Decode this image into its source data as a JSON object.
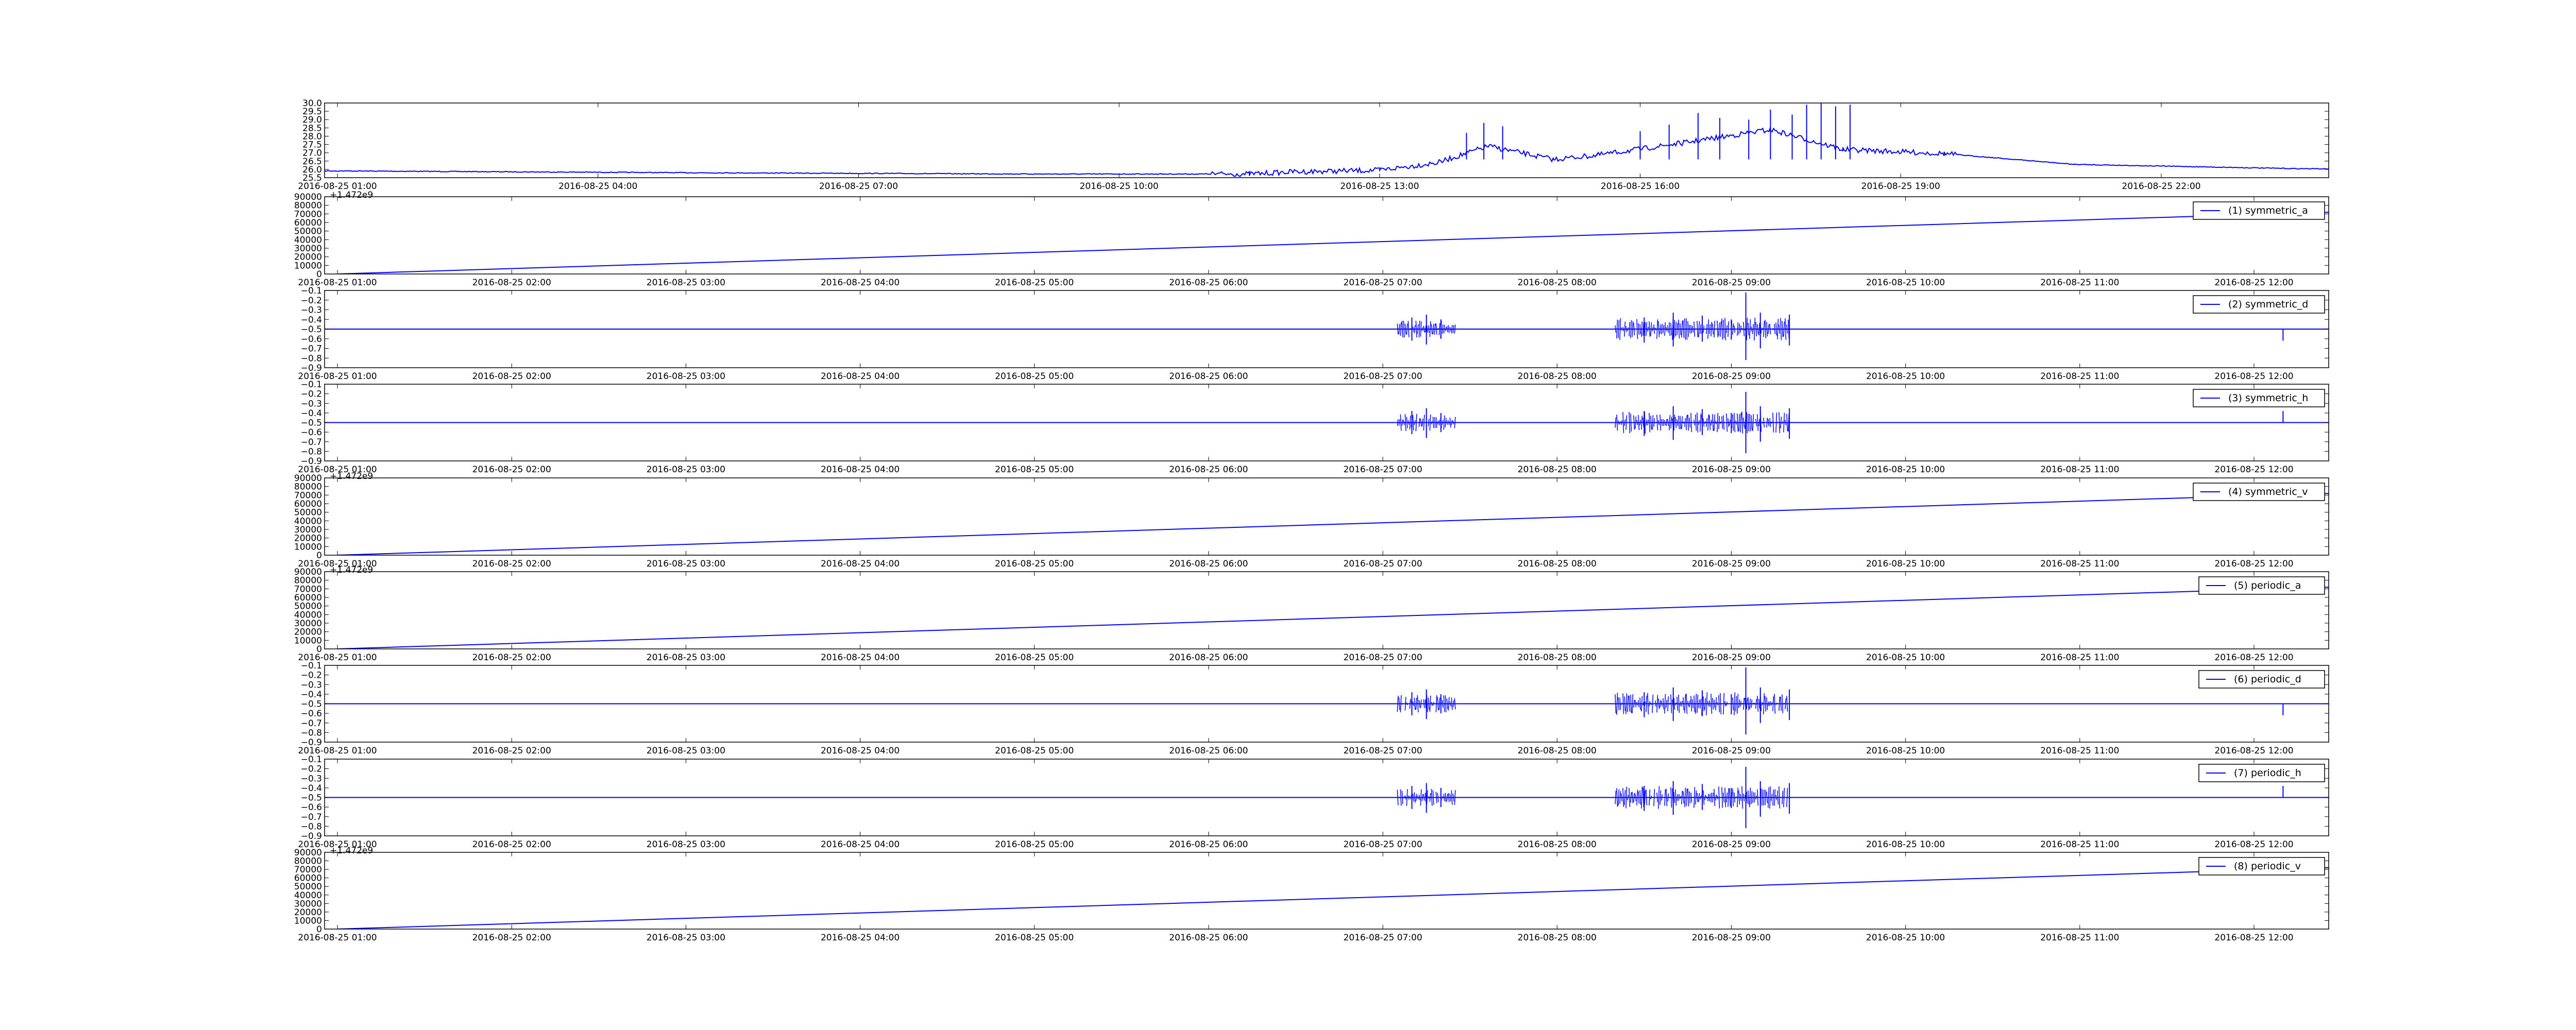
{
  "figure": {
    "background": "#ffffff",
    "line_color": "#0000ff",
    "axes_color": "#000000"
  },
  "chart_data": [
    {
      "type": "line",
      "title": "",
      "xlabel": "",
      "ylabel": "",
      "ylim": [
        25.5,
        30.0
      ],
      "yticks": [
        "30.0",
        "29.5",
        "29.0",
        "28.5",
        "28.0",
        "27.5",
        "27.0",
        "26.5",
        "26.0",
        "25.5"
      ],
      "xticks": [
        "2016-08-25 01:00",
        "2016-08-25 04:00",
        "2016-08-25 07:00",
        "2016-08-25 10:00",
        "2016-08-25 13:00",
        "2016-08-25 16:00",
        "2016-08-25 19:00",
        "2016-08-25 22:00"
      ],
      "grid": false,
      "legend": "none",
      "series": [
        {
          "color": "#0000ff",
          "points": [
            [
              "2016-08-25 00:30",
              25.92
            ],
            [
              "2016-08-25 05:00",
              25.8
            ],
            [
              "2016-08-25 09:00",
              25.72
            ],
            [
              "2016-08-25 11:30",
              25.72
            ],
            [
              "2016-08-25 12:00",
              25.85
            ],
            [
              "2016-08-25 13:00",
              25.95
            ],
            [
              "2016-08-25 13:40",
              26.4
            ],
            [
              "2016-08-25 14:15",
              27.4
            ],
            [
              "2016-08-25 15:00",
              26.6
            ],
            [
              "2016-08-25 15:30",
              26.85
            ],
            [
              "2016-08-25 16:30",
              27.6
            ],
            [
              "2016-08-25 17:30",
              28.4
            ],
            [
              "2016-08-25 18:20",
              27.2
            ],
            [
              "2016-08-25 19:30",
              26.95
            ],
            [
              "2016-08-25 21:00",
              26.3
            ],
            [
              "2016-08-25 23:30",
              26.05
            ],
            [
              "2016-08-26 01:00",
              25.98
            ]
          ],
          "spikes": [
            [
              "2016-08-25 14:00",
              28.2
            ],
            [
              "2016-08-25 14:12",
              28.8
            ],
            [
              "2016-08-25 14:25",
              28.6
            ],
            [
              "2016-08-25 16:00",
              28.3
            ],
            [
              "2016-08-25 16:20",
              28.7
            ],
            [
              "2016-08-25 16:40",
              29.4
            ],
            [
              "2016-08-25 16:55",
              29.1
            ],
            [
              "2016-08-25 17:15",
              29.0
            ],
            [
              "2016-08-25 17:30",
              29.6
            ],
            [
              "2016-08-25 17:45",
              29.3
            ],
            [
              "2016-08-25 17:55",
              29.9
            ],
            [
              "2016-08-25 18:05",
              30.0
            ],
            [
              "2016-08-25 18:15",
              29.8
            ],
            [
              "2016-08-25 18:25",
              29.9
            ]
          ]
        }
      ]
    },
    {
      "type": "line",
      "title": "",
      "xlabel": "",
      "ylabel": "",
      "ylim": [
        0,
        90000
      ],
      "yticks": [
        "90000",
        "80000",
        "70000",
        "60000",
        "50000",
        "40000",
        "30000",
        "20000",
        "10000",
        "0"
      ],
      "offset_label": "+1.472e9",
      "xticks": [
        "2016-08-25 01:00",
        "2016-08-25 02:00",
        "2016-08-25 03:00",
        "2016-08-25 04:00",
        "2016-08-25 05:00",
        "2016-08-25 06:00",
        "2016-08-25 07:00",
        "2016-08-25 08:00",
        "2016-08-25 09:00",
        "2016-08-25 10:00",
        "2016-08-25 11:00",
        "2016-08-25 12:00"
      ],
      "grid": false,
      "legend": "top-right",
      "series": [
        {
          "name": "(1) symmetric_a",
          "color": "#0000ff",
          "points": [
            [
              "2016-08-25 01:00",
              0
            ],
            [
              "2016-08-25 12:40",
              79000
            ]
          ]
        }
      ]
    },
    {
      "type": "line",
      "title": "",
      "xlabel": "",
      "ylabel": "",
      "ylim": [
        -0.9,
        -0.1
      ],
      "yticks": [
        "−0.1",
        "−0.2",
        "−0.3",
        "−0.4",
        "−0.5",
        "−0.6",
        "−0.7",
        "−0.8",
        "−0.9"
      ],
      "xticks": [
        "2016-08-25 01:00",
        "2016-08-25 02:00",
        "2016-08-25 03:00",
        "2016-08-25 04:00",
        "2016-08-25 05:00",
        "2016-08-25 06:00",
        "2016-08-25 07:00",
        "2016-08-25 08:00",
        "2016-08-25 09:00",
        "2016-08-25 10:00",
        "2016-08-25 11:00",
        "2016-08-25 12:00"
      ],
      "grid": false,
      "legend": "top-right",
      "series": [
        {
          "name": "(2) symmetric_d",
          "color": "#0000ff",
          "baseline": -0.5,
          "spikes": [
            [
              "2016-08-25 07:10",
              -0.38,
              -0.62
            ],
            [
              "2016-08-25 07:15",
              -0.35,
              -0.66
            ],
            [
              "2016-08-25 07:20",
              -0.4,
              -0.6
            ],
            [
              "2016-08-25 08:30",
              -0.38,
              -0.64
            ],
            [
              "2016-08-25 08:40",
              -0.33,
              -0.68
            ],
            [
              "2016-08-25 08:50",
              -0.36,
              -0.63
            ],
            [
              "2016-08-25 09:00",
              -0.4,
              -0.61
            ],
            [
              "2016-08-25 09:05",
              -0.12,
              -0.82
            ],
            [
              "2016-08-25 09:10",
              -0.33,
              -0.7
            ],
            [
              "2016-08-25 09:20",
              -0.35,
              -0.67
            ],
            [
              "2016-08-25 12:10",
              -0.5,
              -0.62
            ]
          ]
        }
      ]
    },
    {
      "type": "line",
      "title": "",
      "xlabel": "",
      "ylabel": "",
      "ylim": [
        -0.9,
        -0.1
      ],
      "yticks": [
        "−0.1",
        "−0.2",
        "−0.3",
        "−0.4",
        "−0.5",
        "−0.6",
        "−0.7",
        "−0.8",
        "−0.9"
      ],
      "xticks": [
        "2016-08-25 01:00",
        "2016-08-25 02:00",
        "2016-08-25 03:00",
        "2016-08-25 04:00",
        "2016-08-25 05:00",
        "2016-08-25 06:00",
        "2016-08-25 07:00",
        "2016-08-25 08:00",
        "2016-08-25 09:00",
        "2016-08-25 10:00",
        "2016-08-25 11:00",
        "2016-08-25 12:00"
      ],
      "grid": false,
      "legend": "top-right",
      "series": [
        {
          "name": "(3) symmetric_h",
          "color": "#0000ff",
          "baseline": -0.5,
          "spikes": [
            [
              "2016-08-25 07:10",
              -0.38,
              -0.62
            ],
            [
              "2016-08-25 07:15",
              -0.35,
              -0.66
            ],
            [
              "2016-08-25 07:20",
              -0.4,
              -0.6
            ],
            [
              "2016-08-25 08:30",
              -0.38,
              -0.64
            ],
            [
              "2016-08-25 08:40",
              -0.33,
              -0.68
            ],
            [
              "2016-08-25 08:50",
              -0.36,
              -0.63
            ],
            [
              "2016-08-25 09:00",
              -0.4,
              -0.61
            ],
            [
              "2016-08-25 09:05",
              -0.18,
              -0.82
            ],
            [
              "2016-08-25 09:10",
              -0.33,
              -0.7
            ],
            [
              "2016-08-25 09:20",
              -0.35,
              -0.67
            ],
            [
              "2016-08-25 12:10",
              -0.38,
              -0.5
            ]
          ]
        }
      ]
    },
    {
      "type": "line",
      "title": "",
      "xlabel": "",
      "ylabel": "",
      "ylim": [
        0,
        90000
      ],
      "yticks": [
        "90000",
        "80000",
        "70000",
        "60000",
        "50000",
        "40000",
        "30000",
        "20000",
        "10000",
        "0"
      ],
      "offset_label": "+1.472e9",
      "xticks": [
        "2016-08-25 01:00",
        "2016-08-25 02:00",
        "2016-08-25 03:00",
        "2016-08-25 04:00",
        "2016-08-25 05:00",
        "2016-08-25 06:00",
        "2016-08-25 07:00",
        "2016-08-25 08:00",
        "2016-08-25 09:00",
        "2016-08-25 10:00",
        "2016-08-25 11:00",
        "2016-08-25 12:00"
      ],
      "grid": false,
      "legend": "top-right",
      "series": [
        {
          "name": "(4) symmetric_v",
          "color": "#0000ff",
          "points": [
            [
              "2016-08-25 01:00",
              0
            ],
            [
              "2016-08-25 12:40",
              79000
            ]
          ]
        }
      ]
    },
    {
      "type": "line",
      "title": "",
      "xlabel": "",
      "ylabel": "",
      "ylim": [
        0,
        90000
      ],
      "yticks": [
        "90000",
        "80000",
        "70000",
        "60000",
        "50000",
        "40000",
        "30000",
        "20000",
        "10000",
        "0"
      ],
      "offset_label": "+1.472e9",
      "xticks": [
        "2016-08-25 01:00",
        "2016-08-25 02:00",
        "2016-08-25 03:00",
        "2016-08-25 04:00",
        "2016-08-25 05:00",
        "2016-08-25 06:00",
        "2016-08-25 07:00",
        "2016-08-25 08:00",
        "2016-08-25 09:00",
        "2016-08-25 10:00",
        "2016-08-25 11:00",
        "2016-08-25 12:00"
      ],
      "grid": false,
      "legend": "top-right",
      "series": [
        {
          "name": "(5) periodic_a",
          "color": "#0000ff",
          "points": [
            [
              "2016-08-25 01:00",
              0
            ],
            [
              "2016-08-25 12:40",
              79000
            ]
          ]
        }
      ]
    },
    {
      "type": "line",
      "title": "",
      "xlabel": "",
      "ylabel": "",
      "ylim": [
        -0.9,
        -0.1
      ],
      "yticks": [
        "−0.1",
        "−0.2",
        "−0.3",
        "−0.4",
        "−0.5",
        "−0.6",
        "−0.7",
        "−0.8",
        "−0.9"
      ],
      "xticks": [
        "2016-08-25 01:00",
        "2016-08-25 02:00",
        "2016-08-25 03:00",
        "2016-08-25 04:00",
        "2016-08-25 05:00",
        "2016-08-25 06:00",
        "2016-08-25 07:00",
        "2016-08-25 08:00",
        "2016-08-25 09:00",
        "2016-08-25 10:00",
        "2016-08-25 11:00",
        "2016-08-25 12:00"
      ],
      "grid": false,
      "legend": "top-right",
      "series": [
        {
          "name": "(6) periodic_d",
          "color": "#0000ff",
          "baseline": -0.5,
          "spikes": [
            [
              "2016-08-25 07:10",
              -0.38,
              -0.62
            ],
            [
              "2016-08-25 07:15",
              -0.35,
              -0.66
            ],
            [
              "2016-08-25 07:20",
              -0.4,
              -0.6
            ],
            [
              "2016-08-25 08:30",
              -0.38,
              -0.64
            ],
            [
              "2016-08-25 08:40",
              -0.33,
              -0.68
            ],
            [
              "2016-08-25 08:50",
              -0.36,
              -0.63
            ],
            [
              "2016-08-25 09:00",
              -0.4,
              -0.61
            ],
            [
              "2016-08-25 09:05",
              -0.12,
              -0.82
            ],
            [
              "2016-08-25 09:10",
              -0.33,
              -0.7
            ],
            [
              "2016-08-25 09:20",
              -0.35,
              -0.67
            ],
            [
              "2016-08-25 12:10",
              -0.5,
              -0.62
            ]
          ]
        }
      ]
    },
    {
      "type": "line",
      "title": "",
      "xlabel": "",
      "ylabel": "",
      "ylim": [
        -0.9,
        -0.1
      ],
      "yticks": [
        "−0.1",
        "−0.2",
        "−0.3",
        "−0.4",
        "−0.5",
        "−0.6",
        "−0.7",
        "−0.8",
        "−0.9"
      ],
      "xticks": [
        "2016-08-25 01:00",
        "2016-08-25 02:00",
        "2016-08-25 03:00",
        "2016-08-25 04:00",
        "2016-08-25 05:00",
        "2016-08-25 06:00",
        "2016-08-25 07:00",
        "2016-08-25 08:00",
        "2016-08-25 09:00",
        "2016-08-25 10:00",
        "2016-08-25 11:00",
        "2016-08-25 12:00"
      ],
      "grid": false,
      "legend": "top-right",
      "series": [
        {
          "name": "(7) periodic_h",
          "color": "#0000ff",
          "baseline": -0.5,
          "spikes": [
            [
              "2016-08-25 07:10",
              -0.38,
              -0.62
            ],
            [
              "2016-08-25 07:15",
              -0.35,
              -0.66
            ],
            [
              "2016-08-25 07:20",
              -0.4,
              -0.6
            ],
            [
              "2016-08-25 08:30",
              -0.38,
              -0.64
            ],
            [
              "2016-08-25 08:40",
              -0.33,
              -0.68
            ],
            [
              "2016-08-25 08:50",
              -0.36,
              -0.63
            ],
            [
              "2016-08-25 09:00",
              -0.4,
              -0.61
            ],
            [
              "2016-08-25 09:05",
              -0.18,
              -0.82
            ],
            [
              "2016-08-25 09:10",
              -0.33,
              -0.7
            ],
            [
              "2016-08-25 09:20",
              -0.35,
              -0.67
            ],
            [
              "2016-08-25 12:10",
              -0.38,
              -0.5
            ]
          ]
        }
      ]
    },
    {
      "type": "line",
      "title": "",
      "xlabel": "",
      "ylabel": "",
      "ylim": [
        0,
        90000
      ],
      "yticks": [
        "90000",
        "80000",
        "70000",
        "60000",
        "50000",
        "40000",
        "30000",
        "20000",
        "10000",
        "0"
      ],
      "offset_label": "+1.472e9",
      "xticks": [
        "2016-08-25 01:00",
        "2016-08-25 02:00",
        "2016-08-25 03:00",
        "2016-08-25 04:00",
        "2016-08-25 05:00",
        "2016-08-25 06:00",
        "2016-08-25 07:00",
        "2016-08-25 08:00",
        "2016-08-25 09:00",
        "2016-08-25 10:00",
        "2016-08-25 11:00",
        "2016-08-25 12:00"
      ],
      "grid": false,
      "legend": "top-right",
      "series": [
        {
          "name": "(8) periodic_v",
          "color": "#0000ff",
          "points": [
            [
              "2016-08-25 01:00",
              0
            ],
            [
              "2016-08-25 12:40",
              79000
            ]
          ]
        }
      ]
    }
  ]
}
